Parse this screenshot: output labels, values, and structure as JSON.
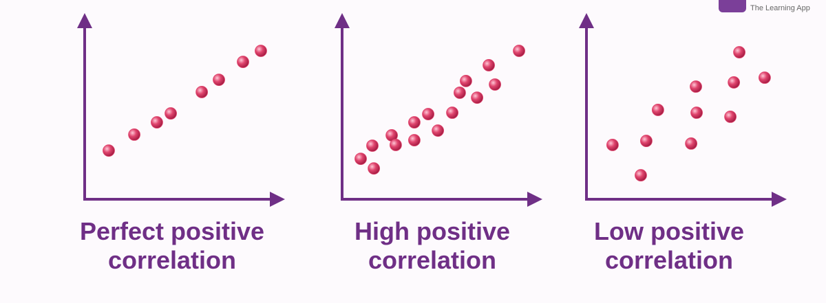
{
  "logo": {
    "tagline": "The Learning App"
  },
  "chart_data": [
    {
      "type": "scatter",
      "title": "Perfect positive correlation",
      "color": "#e0456e",
      "x": [
        13.2,
        27.2,
        39.6,
        47.2,
        64.2,
        73.6,
        86.8,
        96.6
      ],
      "y": [
        27.8,
        36.9,
        43.9,
        49.0,
        61.2,
        68.2,
        78.4,
        84.7
      ],
      "xlim": [
        0,
        100
      ],
      "ylim": [
        0,
        100
      ]
    },
    {
      "type": "scatter",
      "title": "High positive correlation",
      "color": "#e0456e",
      "x": [
        10.2,
        16.6,
        17.4,
        27.2,
        29.4,
        39.6,
        39.6,
        47.2,
        52.5,
        60.4,
        64.5,
        67.9,
        74.0,
        80.4,
        83.8,
        97.0
      ],
      "y": [
        23.1,
        30.6,
        17.6,
        36.5,
        31.0,
        43.9,
        33.7,
        48.6,
        39.2,
        49.4,
        60.8,
        67.5,
        58.0,
        76.5,
        65.5,
        84.7
      ],
      "xlim": [
        0,
        100
      ],
      "ylim": [
        0,
        100
      ]
    },
    {
      "type": "scatter",
      "title": "Low positive correlation",
      "color": "#e0456e",
      "x": [
        14.3,
        29.8,
        32.8,
        39.2,
        57.4,
        60.0,
        60.4,
        78.9,
        80.8,
        83.8,
        97.7
      ],
      "y": [
        31.0,
        13.7,
        33.3,
        51.0,
        31.8,
        64.3,
        49.4,
        47.1,
        66.7,
        83.9,
        69.4
      ],
      "xlim": [
        0,
        100
      ],
      "ylim": [
        0,
        100
      ]
    }
  ]
}
